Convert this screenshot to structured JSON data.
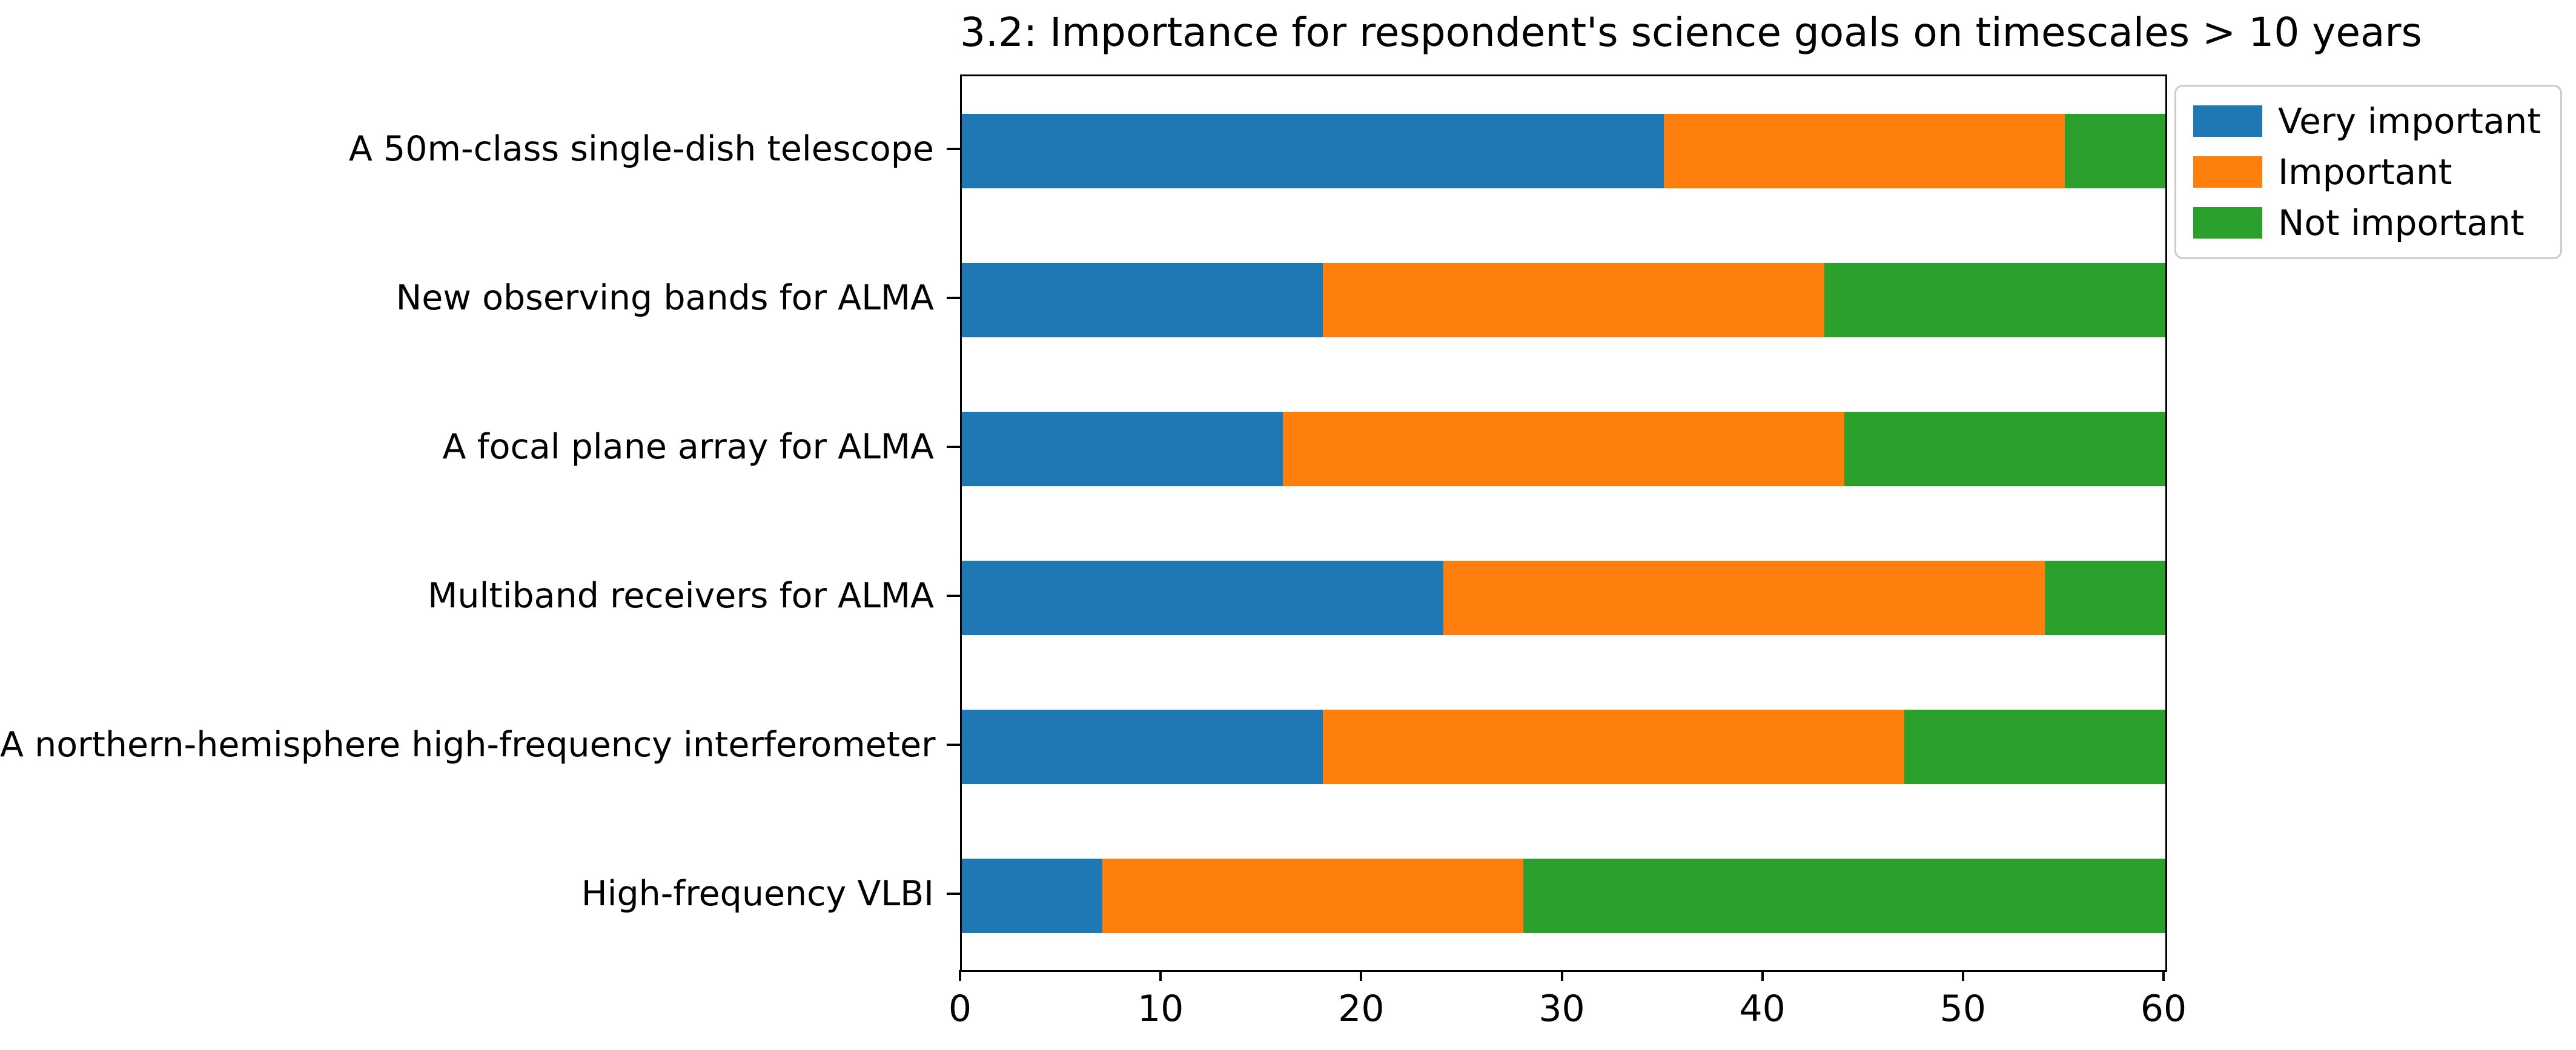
{
  "chart_data": {
    "type": "bar",
    "orientation": "horizontal",
    "stacked": true,
    "title": "3.2: Importance for respondent's science goals on timescales > 10 years",
    "categories": [
      "A 50m-class single-dish telescope",
      "New observing bands for ALMA",
      "A focal plane array for ALMA",
      "Multiband receivers for ALMA",
      "A northern-hemisphere high-frequency interferometer",
      "High-frequency VLBI"
    ],
    "series": [
      {
        "name": "Very important",
        "color": "#1f77b4",
        "values": [
          35,
          18,
          16,
          24,
          18,
          7
        ]
      },
      {
        "name": "Important",
        "color": "#ff7f0e",
        "values": [
          20,
          25,
          28,
          30,
          29,
          21
        ]
      },
      {
        "name": "Not important",
        "color": "#2ca02c",
        "values": [
          5,
          17,
          16,
          6,
          13,
          32
        ]
      }
    ],
    "xlabel": "",
    "ylabel": "",
    "xlim": [
      0,
      60
    ],
    "x_ticks": [
      0,
      10,
      20,
      30,
      40,
      50,
      60
    ],
    "grid": false,
    "legend_position": "outside upper right",
    "bar_fill_fraction": 0.5
  },
  "colors": {
    "background": "#ffffff",
    "spine": "#000000",
    "legend_border": "#cccccc",
    "text": "#000000"
  }
}
